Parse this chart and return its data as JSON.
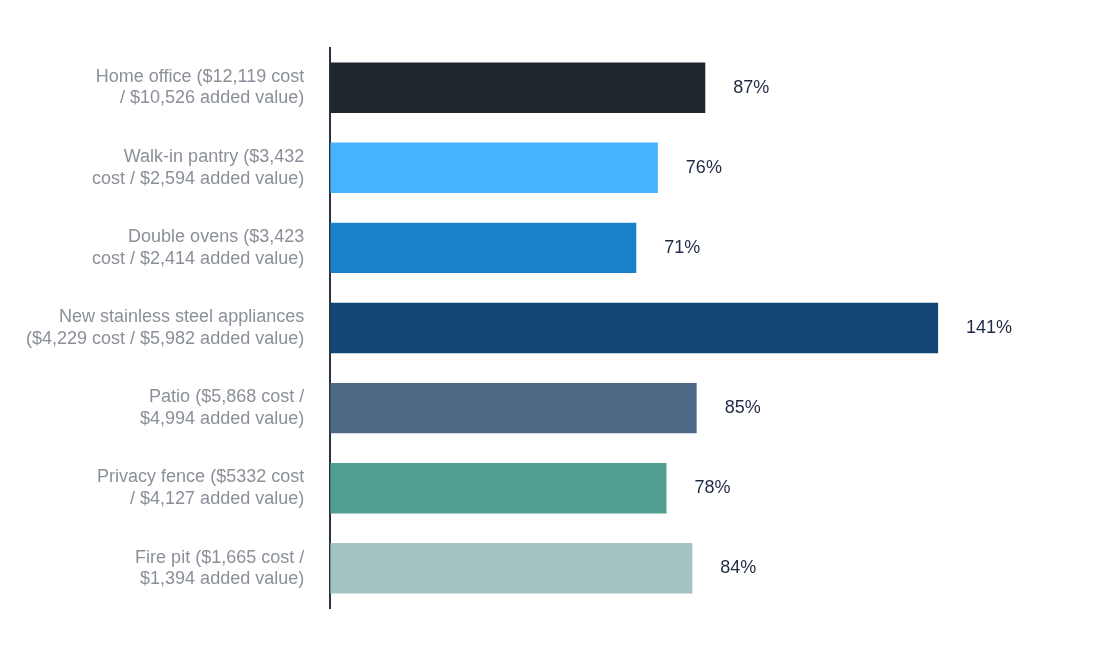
{
  "chart_data": {
    "type": "bar",
    "orientation": "horizontal",
    "categories": [
      "Home office ($12,119 cost / $10,526 added value)",
      "Walk-in pantry ($3,432 cost / $2,594 added value)",
      "Double ovens ($3,423 cost / $2,414 added value)",
      "New stainless steel appliances ($4,229 cost / $5,982 added value)",
      "Patio ($5,868 cost / $4,994 added value)",
      "Privacy fence ($5332 cost / $4,127 added value)",
      "Fire pit ($1,665 cost / $1,394 added value)"
    ],
    "values": [
      87,
      76,
      71,
      141,
      85,
      78,
      84
    ],
    "colors": [
      "#1f262e",
      "#45b3fe",
      "#1a82cb",
      "#134674",
      "#4e6886",
      "#519f92",
      "#a3c4c3"
    ],
    "value_labels": [
      "87%",
      "76%",
      "71%",
      "141%",
      "85%",
      "78%",
      "84%"
    ],
    "legend": false
  }
}
